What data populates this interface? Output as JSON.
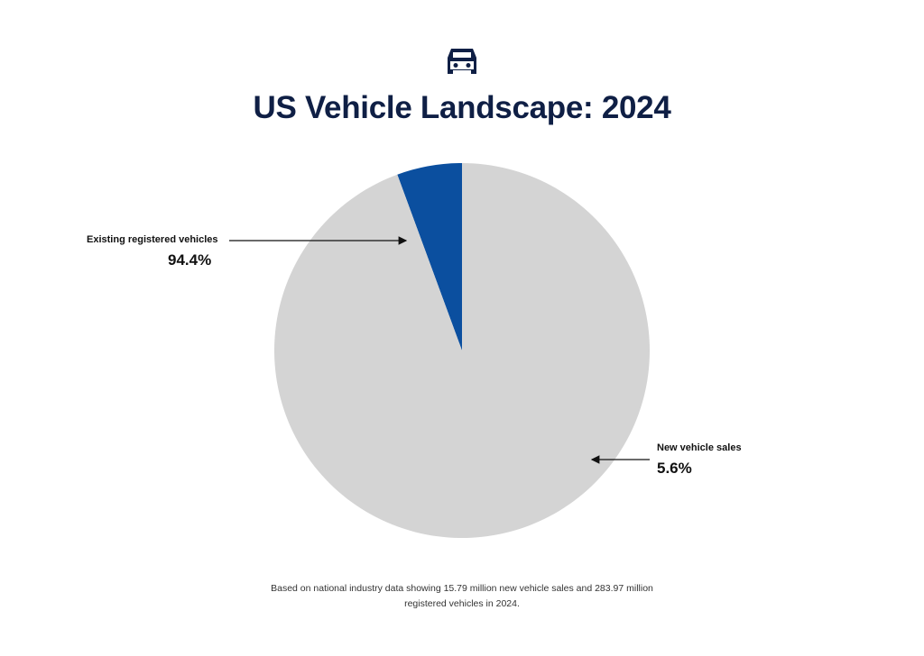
{
  "chart_data": {
    "type": "pie",
    "title": "US Vehicle Landscape: 2024",
    "icon": "car-icon",
    "slices": [
      {
        "name": "New vehicle sales",
        "value": 5.6,
        "label": "5.6%",
        "color": "#0b4f9f"
      },
      {
        "name": "Existing registered vehicles",
        "value": 94.4,
        "label": "94.4%",
        "color": "#d4d4d4"
      }
    ],
    "annotations": [
      {
        "text": "Existing registered vehicles",
        "value_text": "94.4%",
        "points_to": "New vehicle sales"
      },
      {
        "text": "New vehicle sales",
        "value_text": "5.6%",
        "points_to": "Existing registered vehicles"
      }
    ],
    "footnote": "Based on national industry data showing 15.79 million new vehicle sales and 283.97 million registered vehicles in 2024."
  }
}
